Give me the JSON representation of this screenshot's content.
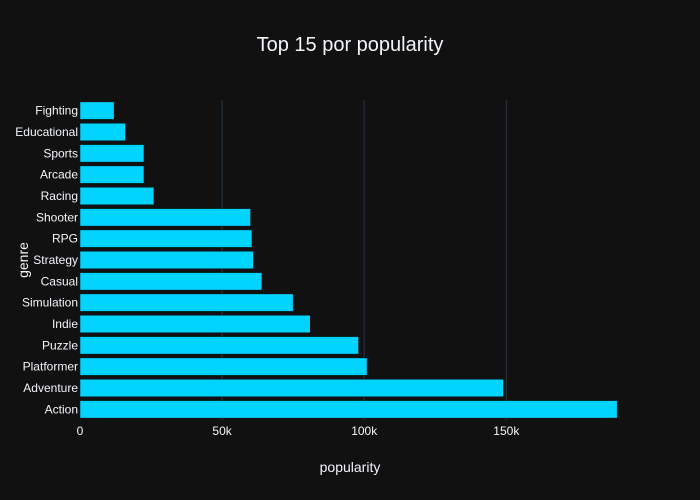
{
  "chart_data": {
    "type": "bar",
    "orientation": "horizontal",
    "title": "Top 15 por popularity",
    "xlabel": "popularity",
    "ylabel": "genre",
    "categories": [
      "Action",
      "Adventure",
      "Platformer",
      "Puzzle",
      "Indie",
      "Simulation",
      "Casual",
      "Strategy",
      "RPG",
      "Shooter",
      "Racing",
      "Arcade",
      "Sports",
      "Educational",
      "Fighting"
    ],
    "values": [
      189000,
      149000,
      101000,
      98000,
      81000,
      75000,
      64000,
      61000,
      60500,
      60000,
      26000,
      22500,
      22500,
      16000,
      12000
    ],
    "xlim": [
      0,
      190000
    ],
    "x_ticks": [
      0,
      50000,
      100000,
      150000
    ],
    "x_tick_labels": [
      "0",
      "50k",
      "100k",
      "150k"
    ],
    "grid": "vertical",
    "colors": {
      "background": "#111111",
      "bar": "#00d4ff",
      "grid": "#283442",
      "text": "#f2f5fa"
    }
  }
}
